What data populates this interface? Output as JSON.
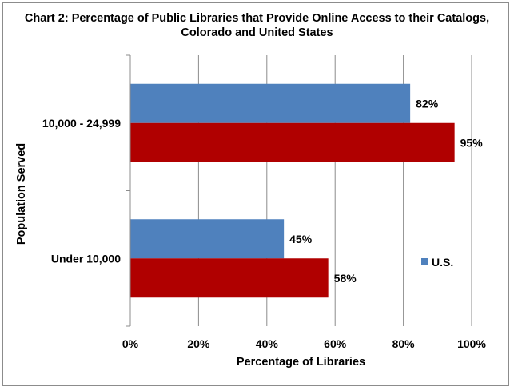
{
  "chart_data": {
    "type": "bar",
    "orientation": "horizontal",
    "title_lines": [
      "Chart 2: Percentage of Public Libraries that Provide Online Access to their Catalogs,",
      "Colorado and United States"
    ],
    "categories": [
      "10,000 - 24,999",
      "Under 10,000"
    ],
    "series": [
      {
        "name": "U.S.",
        "values": [
          82,
          45
        ],
        "labels": [
          "82%",
          "45%"
        ],
        "color": "#4f81bd"
      },
      {
        "name": "",
        "values": [
          95,
          58
        ],
        "labels": [
          "95%",
          "58%"
        ],
        "color": "#b00000"
      }
    ],
    "xlabel": "Percentage of Libraries",
    "ylabel": "Population Served",
    "xlim": [
      0,
      100
    ],
    "x_ticks": [
      "0%",
      "20%",
      "40%",
      "60%",
      "80%",
      "100%"
    ],
    "grid": "vertical",
    "legend": {
      "position": "right",
      "entries": [
        "U.S."
      ]
    }
  }
}
